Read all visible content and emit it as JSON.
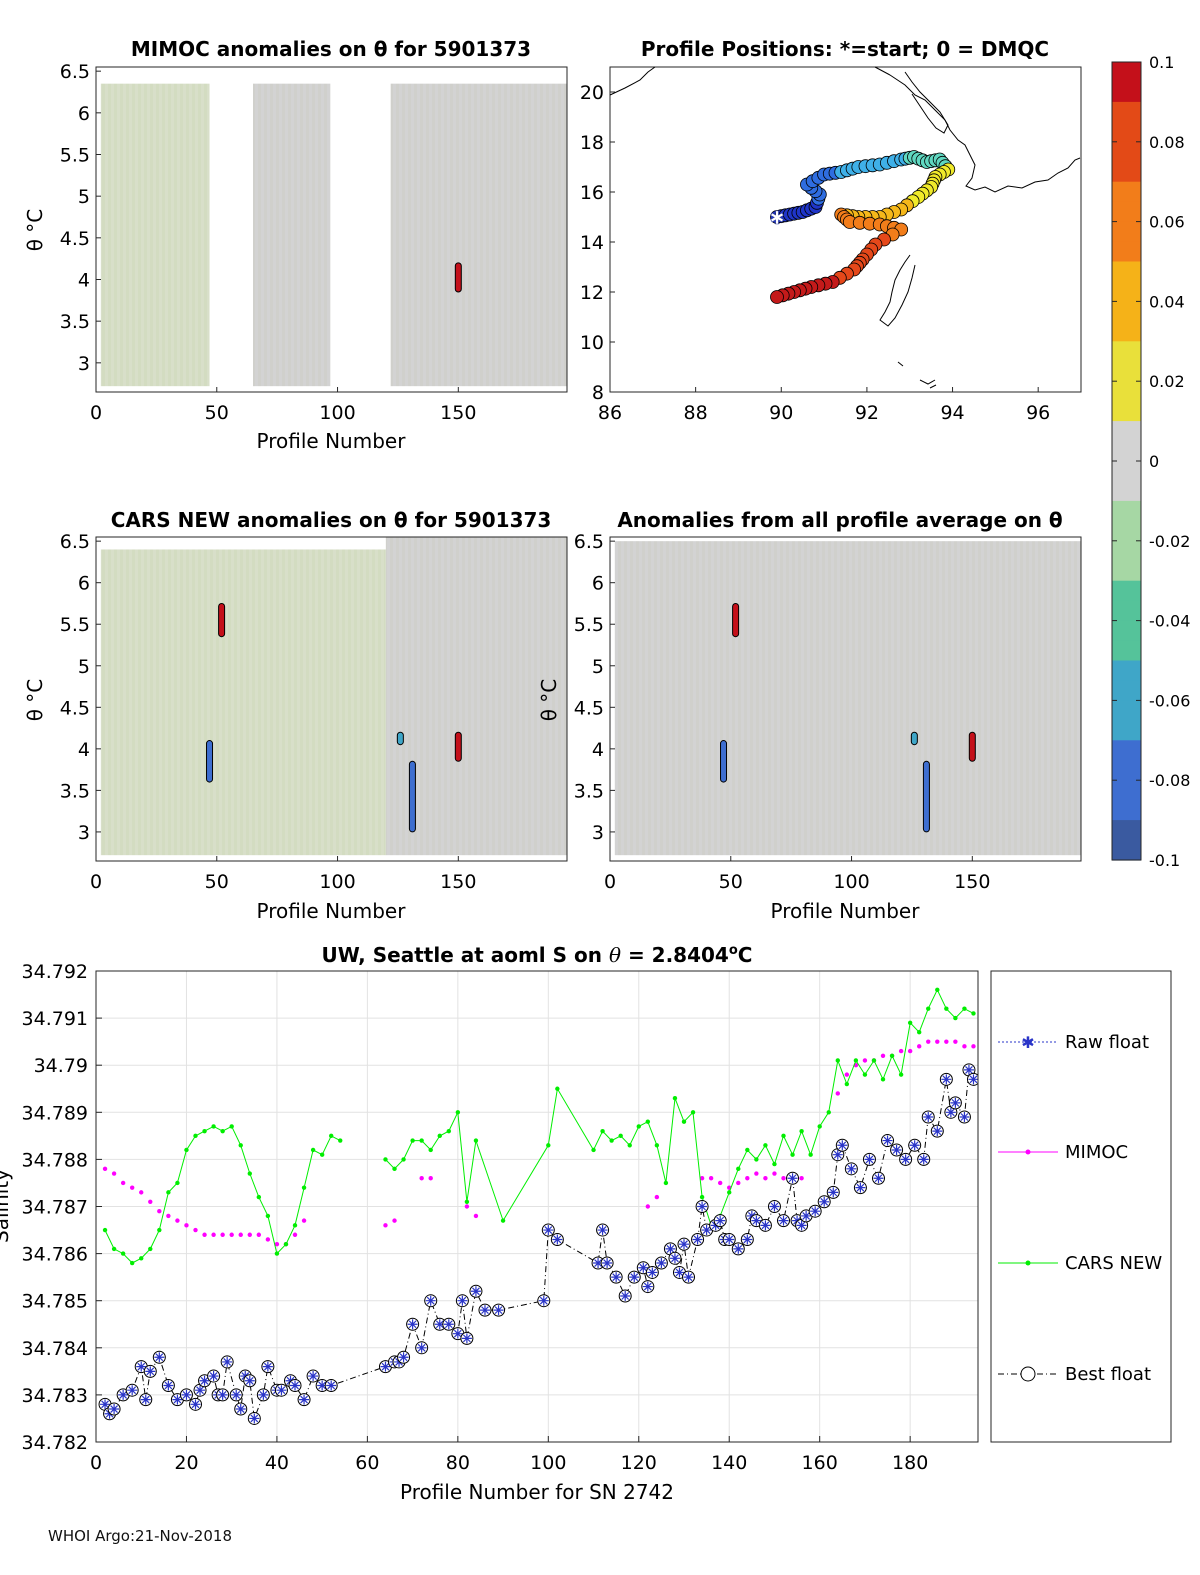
{
  "float_id": "5901373",
  "footer": "WHOI Argo:21-Nov-2018",
  "colorbar": {
    "ticks": [
      "0.1",
      "0.08",
      "0.06",
      "0.04",
      "0.02",
      "0",
      "-0.02",
      "-0.04",
      "-0.06",
      "-0.08",
      "-0.1"
    ],
    "range": [
      -0.1,
      0.1
    ],
    "colors": [
      "#3a5aa0",
      "#3e6ed0",
      "#3fa6c8",
      "#55c39a",
      "#a6d7a4",
      "#d3d3d3",
      "#e9e03a",
      "#f5b218",
      "#f27d1a",
      "#e34a17",
      "#c4101a"
    ]
  },
  "chart_data": [
    {
      "id": "mimoc",
      "type": "heatmap",
      "title": "MIMOC anomalies on θ  for 5901373",
      "xlabel": "Profile Number",
      "ylabel": "θ °C",
      "xlim": [
        0,
        195
      ],
      "ylim": [
        2.65,
        6.55
      ],
      "x_ticks": [
        "0",
        "50",
        "100",
        "150"
      ],
      "x_tick_values": [
        0,
        50,
        100,
        150
      ],
      "y_ticks": [
        "3",
        "3.5",
        "4",
        "4.5",
        "5",
        "5.5",
        "6",
        "6.5"
      ],
      "y_tick_values": [
        3,
        3.5,
        4,
        4.5,
        5,
        5.5,
        6,
        6.5
      ],
      "data_columns": [
        {
          "x0": 2,
          "x1": 47,
          "ymin": 2.72,
          "ymax": 6.35,
          "tint": "green"
        },
        {
          "x0": 65,
          "x1": 97,
          "ymin": 2.72,
          "ymax": 6.35,
          "tint": "grey"
        },
        {
          "x0": 122,
          "x1": 195,
          "ymin": 2.72,
          "ymax": 6.35,
          "tint": "grey"
        }
      ],
      "anomaly_marks": [
        {
          "x": 150,
          "y0": 3.85,
          "y1": 4.2,
          "value": 0.09
        }
      ]
    },
    {
      "id": "positions",
      "type": "scatter",
      "title": "Profile Positions: *=start; 0 = DMQC",
      "xlim": [
        86,
        97
      ],
      "ylim": [
        8,
        21
      ],
      "x_ticks": [
        "86",
        "88",
        "90",
        "92",
        "94",
        "96"
      ],
      "x_tick_values": [
        86,
        88,
        90,
        92,
        94,
        96
      ],
      "y_ticks": [
        "8",
        "10",
        "12",
        "14",
        "16",
        "18",
        "20"
      ],
      "y_tick_values": [
        8,
        10,
        12,
        14,
        16,
        18,
        20
      ],
      "start": {
        "lon": 89.9,
        "lat": 15.0
      },
      "track": [
        {
          "lon": 89.9,
          "lat": 15.0
        },
        {
          "lon": 90.2,
          "lat": 15.1
        },
        {
          "lon": 90.5,
          "lat": 15.2
        },
        {
          "lon": 90.8,
          "lat": 15.4
        },
        {
          "lon": 90.9,
          "lat": 15.9
        },
        {
          "lon": 90.6,
          "lat": 16.3
        },
        {
          "lon": 91.0,
          "lat": 16.7
        },
        {
          "lon": 91.4,
          "lat": 16.8
        },
        {
          "lon": 91.8,
          "lat": 17.0
        },
        {
          "lon": 92.3,
          "lat": 17.1
        },
        {
          "lon": 92.8,
          "lat": 17.3
        },
        {
          "lon": 93.1,
          "lat": 17.4
        },
        {
          "lon": 93.4,
          "lat": 17.2
        },
        {
          "lon": 93.7,
          "lat": 17.3
        },
        {
          "lon": 93.9,
          "lat": 16.9
        },
        {
          "lon": 93.6,
          "lat": 16.6
        },
        {
          "lon": 93.5,
          "lat": 16.2
        },
        {
          "lon": 93.2,
          "lat": 15.8
        },
        {
          "lon": 92.8,
          "lat": 15.3
        },
        {
          "lon": 92.3,
          "lat": 15.0
        },
        {
          "lon": 91.8,
          "lat": 15.0
        },
        {
          "lon": 91.4,
          "lat": 15.1
        },
        {
          "lon": 91.6,
          "lat": 14.8
        },
        {
          "lon": 92.3,
          "lat": 14.7
        },
        {
          "lon": 92.8,
          "lat": 14.5
        },
        {
          "lon": 92.2,
          "lat": 13.9
        },
        {
          "lon": 91.9,
          "lat": 13.3
        },
        {
          "lon": 91.7,
          "lat": 12.9
        },
        {
          "lon": 91.2,
          "lat": 12.4
        },
        {
          "lon": 90.7,
          "lat": 12.2
        },
        {
          "lon": 90.3,
          "lat": 12.0
        },
        {
          "lon": 89.9,
          "lat": 11.8
        }
      ]
    },
    {
      "id": "cars",
      "type": "heatmap",
      "title": "CARS NEW anomalies on θ for 5901373",
      "xlabel": "Profile Number",
      "ylabel": "θ °C",
      "xlim": [
        0,
        195
      ],
      "ylim": [
        2.65,
        6.55
      ],
      "x_ticks": [
        "0",
        "50",
        "100",
        "150"
      ],
      "x_tick_values": [
        0,
        50,
        100,
        150
      ],
      "y_ticks": [
        "3",
        "3.5",
        "4",
        "4.5",
        "5",
        "5.5",
        "6",
        "6.5"
      ],
      "y_tick_values": [
        3,
        3.5,
        4,
        4.5,
        5,
        5.5,
        6,
        6.5
      ],
      "data_columns": [
        {
          "x0": 2,
          "x1": 120,
          "ymin": 2.72,
          "ymax": 6.4,
          "tint": "green"
        },
        {
          "x0": 120,
          "x1": 195,
          "ymin": 2.72,
          "ymax": 6.55,
          "tint": "grey"
        }
      ],
      "anomaly_marks": [
        {
          "x": 52,
          "y0": 5.35,
          "y1": 5.75,
          "value": 0.09
        },
        {
          "x": 47,
          "y0": 3.6,
          "y1": 4.1,
          "value": -0.08
        },
        {
          "x": 126,
          "y0": 4.05,
          "y1": 4.2,
          "value": -0.06
        },
        {
          "x": 131,
          "y0": 3.0,
          "y1": 3.85,
          "value": -0.08
        },
        {
          "x": 150,
          "y0": 3.85,
          "y1": 4.2,
          "value": 0.09
        }
      ]
    },
    {
      "id": "allavg",
      "type": "heatmap",
      "title": "Anomalies from all profile average on θ",
      "xlabel": "Profile Number",
      "ylabel": "θ °C",
      "xlim": [
        0,
        195
      ],
      "ylim": [
        2.65,
        6.55
      ],
      "x_ticks": [
        "0",
        "50",
        "100",
        "150"
      ],
      "x_tick_values": [
        0,
        50,
        100,
        150
      ],
      "y_ticks": [
        "3",
        "3.5",
        "4",
        "4.5",
        "5",
        "5.5",
        "6",
        "6.5"
      ],
      "y_tick_values": [
        3,
        3.5,
        4,
        4.5,
        5,
        5.5,
        6,
        6.5
      ],
      "data_columns": [
        {
          "x0": 2,
          "x1": 195,
          "ymin": 2.72,
          "ymax": 6.5,
          "tint": "grey"
        }
      ],
      "anomaly_marks": [
        {
          "x": 52,
          "y0": 5.35,
          "y1": 5.75,
          "value": 0.09
        },
        {
          "x": 47,
          "y0": 3.6,
          "y1": 4.1,
          "value": -0.08
        },
        {
          "x": 126,
          "y0": 4.05,
          "y1": 4.2,
          "value": -0.06
        },
        {
          "x": 131,
          "y0": 3.0,
          "y1": 3.85,
          "value": -0.08
        },
        {
          "x": 150,
          "y0": 3.85,
          "y1": 4.2,
          "value": 0.09
        }
      ]
    },
    {
      "id": "salinity",
      "type": "line",
      "title": "UW, Seattle at aoml S on θ = 2.8404°C",
      "title_base": "UW, Seattle at aoml S on ",
      "title_theta": "θ",
      "title_value": " = 2.8404",
      "title_unit": "o",
      "title_tail": "C",
      "xlabel": "Profile Number for SN 2742",
      "ylabel": "Salinity",
      "xlim": [
        0,
        195
      ],
      "ylim": [
        34.782,
        34.792
      ],
      "x_ticks": [
        "0",
        "20",
        "40",
        "60",
        "80",
        "100",
        "120",
        "140",
        "160",
        "180"
      ],
      "x_tick_values": [
        0,
        20,
        40,
        60,
        80,
        100,
        120,
        140,
        160,
        180
      ],
      "y_ticks": [
        "34.782",
        "34.783",
        "34.784",
        "34.785",
        "34.786",
        "34.787",
        "34.788",
        "34.789",
        "34.79",
        "34.791",
        "34.792"
      ],
      "y_tick_values": [
        34.782,
        34.783,
        34.784,
        34.785,
        34.786,
        34.787,
        34.788,
        34.789,
        34.79,
        34.791,
        34.792
      ],
      "legend": [
        "Raw float",
        "MIMOC",
        "CARS NEW",
        "Best float"
      ],
      "series": [
        {
          "name": "MIMOC",
          "color": "#ff00ff",
          "x": [
            2,
            4,
            6,
            8,
            10,
            12,
            14,
            16,
            18,
            20,
            22,
            24,
            26,
            28,
            30,
            32,
            34,
            36,
            38,
            40,
            42,
            44,
            46,
            64,
            66,
            72,
            74,
            82,
            84,
            122,
            124,
            134,
            136,
            138,
            140,
            142,
            144,
            146,
            148,
            150,
            152,
            154,
            156,
            164,
            166,
            168,
            170,
            172,
            174,
            176,
            178,
            180,
            182,
            184,
            186,
            188,
            190,
            192,
            194
          ],
          "values": [
            34.7878,
            34.7877,
            34.7875,
            34.7874,
            34.7873,
            34.7871,
            34.7869,
            34.7868,
            34.7867,
            34.7866,
            34.7865,
            34.7864,
            34.7864,
            34.7864,
            34.7864,
            34.7864,
            34.7864,
            34.7864,
            34.7863,
            34.7862,
            34.7862,
            34.7864,
            34.7867,
            34.7866,
            34.7867,
            34.7876,
            34.7876,
            34.787,
            34.7868,
            34.787,
            34.7872,
            34.7876,
            34.7876,
            34.7875,
            34.7874,
            34.7875,
            34.7876,
            34.7877,
            34.7876,
            34.7877,
            34.7876,
            34.7876,
            34.7876,
            34.7894,
            34.7898,
            34.79,
            34.7901,
            34.7901,
            34.7902,
            34.7902,
            34.7903,
            34.7903,
            34.7904,
            34.7905,
            34.7905,
            34.7905,
            34.7905,
            34.7904,
            34.7904
          ]
        },
        {
          "name": "CARS NEW",
          "color": "#00ee00",
          "x": [
            2,
            4,
            6,
            8,
            10,
            12,
            14,
            16,
            18,
            20,
            22,
            24,
            26,
            28,
            30,
            32,
            34,
            36,
            38,
            40,
            42,
            44,
            46,
            48,
            50,
            52,
            54,
            64,
            66,
            68,
            70,
            72,
            74,
            76,
            78,
            80,
            82,
            84,
            90,
            100,
            102,
            110,
            112,
            114,
            116,
            118,
            120,
            122,
            124,
            126,
            128,
            130,
            132,
            134,
            136,
            138,
            140,
            142,
            144,
            146,
            148,
            150,
            152,
            154,
            156,
            158,
            160,
            162,
            164,
            166,
            168,
            170,
            172,
            174,
            176,
            178,
            180,
            182,
            184,
            186,
            188,
            190,
            192,
            194
          ],
          "values": [
            34.7865,
            34.7861,
            34.786,
            34.7858,
            34.7859,
            34.7861,
            34.7865,
            34.7873,
            34.7875,
            34.7882,
            34.7885,
            34.7886,
            34.7887,
            34.7886,
            34.7887,
            34.7883,
            34.7877,
            34.7872,
            34.7868,
            34.786,
            34.7862,
            34.7866,
            34.7874,
            34.7882,
            34.7881,
            34.7885,
            34.7884,
            34.788,
            34.7878,
            34.788,
            34.7884,
            34.7884,
            34.7882,
            34.7885,
            34.7886,
            34.789,
            34.7871,
            34.7884,
            34.7867,
            34.7883,
            34.7895,
            34.7882,
            34.7886,
            34.7884,
            34.7885,
            34.7883,
            34.7887,
            34.7888,
            34.7883,
            34.7875,
            34.7893,
            34.7888,
            34.789,
            34.7872,
            34.7866,
            34.7868,
            34.7873,
            34.7878,
            34.7882,
            34.788,
            34.7883,
            34.7879,
            34.7885,
            34.7881,
            34.7886,
            34.7881,
            34.7887,
            34.789,
            34.7901,
            34.7896,
            34.7901,
            34.7898,
            34.7901,
            34.7897,
            34.7902,
            34.7898,
            34.7909,
            34.7907,
            34.7912,
            34.7916,
            34.7912,
            34.791,
            34.7912,
            34.7911
          ]
        },
        {
          "name": "Best float",
          "color": "#000000",
          "marker_color": "#2a35c8",
          "x": [
            2,
            3,
            4,
            6,
            8,
            10,
            11,
            12,
            14,
            16,
            18,
            20,
            22,
            23,
            24,
            26,
            27,
            28,
            29,
            31,
            32,
            33,
            34,
            35,
            37,
            38,
            40,
            41,
            43,
            44,
            46,
            48,
            50,
            52,
            64,
            66,
            67,
            68,
            70,
            72,
            74,
            76,
            78,
            80,
            81,
            82,
            84,
            86,
            89,
            99,
            100,
            102,
            111,
            112,
            113,
            115,
            117,
            119,
            121,
            122,
            123,
            125,
            127,
            128,
            129,
            130,
            131,
            133,
            134,
            135,
            137,
            138,
            139,
            140,
            142,
            144,
            145,
            146,
            148,
            150,
            152,
            154,
            155,
            156,
            157,
            159,
            161,
            163,
            164,
            165,
            167,
            169,
            171,
            173,
            175,
            177,
            179,
            181,
            183,
            184,
            186,
            188,
            189,
            190,
            192,
            193,
            194
          ],
          "values": [
            34.7828,
            34.7826,
            34.7827,
            34.783,
            34.7831,
            34.7836,
            34.7829,
            34.7835,
            34.7838,
            34.7832,
            34.7829,
            34.783,
            34.7828,
            34.7831,
            34.7833,
            34.7834,
            34.783,
            34.783,
            34.7837,
            34.783,
            34.7827,
            34.7834,
            34.7833,
            34.7825,
            34.783,
            34.7836,
            34.7831,
            34.7831,
            34.7833,
            34.7832,
            34.7829,
            34.7834,
            34.7832,
            34.7832,
            34.7836,
            34.7837,
            34.7837,
            34.7838,
            34.7845,
            34.784,
            34.785,
            34.7845,
            34.7845,
            34.7843,
            34.785,
            34.7842,
            34.7852,
            34.7848,
            34.7848,
            34.785,
            34.7865,
            34.7863,
            34.7858,
            34.7865,
            34.7858,
            34.7855,
            34.7851,
            34.7855,
            34.7857,
            34.7853,
            34.7856,
            34.7858,
            34.7861,
            34.7859,
            34.7856,
            34.7862,
            34.7855,
            34.7863,
            34.787,
            34.7865,
            34.7866,
            34.7867,
            34.7863,
            34.7863,
            34.7861,
            34.7863,
            34.7868,
            34.7867,
            34.7866,
            34.787,
            34.7867,
            34.7876,
            34.7867,
            34.7866,
            34.7868,
            34.7869,
            34.7871,
            34.7873,
            34.7881,
            34.7883,
            34.7878,
            34.7874,
            34.788,
            34.7876,
            34.7884,
            34.7882,
            34.788,
            34.7883,
            34.788,
            34.7889,
            34.7886,
            34.7897,
            34.789,
            34.7892,
            34.7889,
            34.7899,
            34.7897
          ]
        }
      ]
    }
  ]
}
